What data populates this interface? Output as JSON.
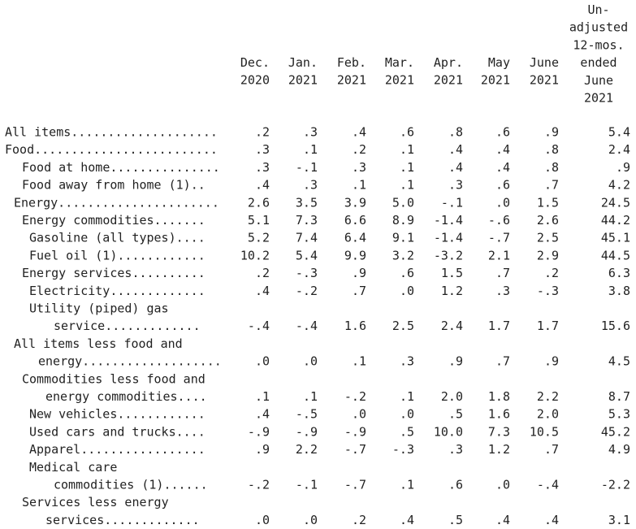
{
  "table": {
    "columns": [
      [
        "Dec.",
        "2020"
      ],
      [
        "Jan.",
        "2021"
      ],
      [
        "Feb.",
        "2021"
      ],
      [
        "Mar.",
        "2021"
      ],
      [
        "Apr.",
        "2021"
      ],
      [
        "May",
        "2021"
      ],
      [
        "June",
        "2021"
      ],
      [
        "Un-",
        "adjusted",
        "12-mos.",
        "ended",
        "June",
        "2021"
      ]
    ],
    "rows": [
      {
        "label": [
          "All items...................."
        ],
        "values": [
          ".2",
          ".3",
          ".4",
          ".6",
          ".8",
          ".6",
          ".9",
          "5.4"
        ]
      },
      {
        "label": [
          "Food........................."
        ],
        "values": [
          ".3",
          ".1",
          ".2",
          ".1",
          ".4",
          ".4",
          ".8",
          "2.4"
        ]
      },
      {
        "label": [
          "Food at home..............."
        ],
        "values": [
          ".3",
          "-.1",
          ".3",
          ".1",
          ".4",
          ".4",
          ".8",
          ".9"
        ]
      },
      {
        "label": [
          "Food away from home (1).."
        ],
        "values": [
          ".4",
          ".3",
          ".1",
          ".1",
          ".3",
          ".6",
          ".7",
          "4.2"
        ]
      },
      {
        "label": [
          "Energy......................"
        ],
        "values": [
          "2.6",
          "3.5",
          "3.9",
          "5.0",
          "-.1",
          ".0",
          "1.5",
          "24.5"
        ]
      },
      {
        "label": [
          "Energy commodities......."
        ],
        "values": [
          "5.1",
          "7.3",
          "6.6",
          "8.9",
          "-1.4",
          "-.6",
          "2.6",
          "44.2"
        ]
      },
      {
        "label": [
          "Gasoline (all types)...."
        ],
        "values": [
          "5.2",
          "7.4",
          "6.4",
          "9.1",
          "-1.4",
          "-.7",
          "2.5",
          "45.1"
        ]
      },
      {
        "label": [
          "Fuel oil (1)............"
        ],
        "values": [
          "10.2",
          "5.4",
          "9.9",
          "3.2",
          "-3.2",
          "2.1",
          "2.9",
          "44.5"
        ]
      },
      {
        "label": [
          "Energy services.........."
        ],
        "values": [
          ".2",
          "-.3",
          ".9",
          ".6",
          "1.5",
          ".7",
          ".2",
          "6.3"
        ]
      },
      {
        "label": [
          "Electricity............."
        ],
        "values": [
          ".4",
          "-.2",
          ".7",
          ".0",
          "1.2",
          ".3",
          "-.3",
          "3.8"
        ]
      },
      {
        "label": [
          "Utility (piped) gas",
          "service............."
        ],
        "values": [
          "-.4",
          "-.4",
          "1.6",
          "2.5",
          "2.4",
          "1.7",
          "1.7",
          "15.6"
        ]
      },
      {
        "label": [
          "All items less food and",
          "energy..................."
        ],
        "values": [
          ".0",
          ".0",
          ".1",
          ".3",
          ".9",
          ".7",
          ".9",
          "4.5"
        ]
      },
      {
        "label": [
          "Commodities less food and",
          "energy commodities...."
        ],
        "values": [
          ".1",
          ".1",
          "-.2",
          ".1",
          "2.0",
          "1.8",
          "2.2",
          "8.7"
        ]
      },
      {
        "label": [
          "New vehicles............"
        ],
        "values": [
          ".4",
          "-.5",
          ".0",
          ".0",
          ".5",
          "1.6",
          "2.0",
          "5.3"
        ]
      },
      {
        "label": [
          "Used cars and trucks...."
        ],
        "values": [
          "-.9",
          "-.9",
          "-.9",
          ".5",
          "10.0",
          "7.3",
          "10.5",
          "45.2"
        ]
      },
      {
        "label": [
          "Apparel................."
        ],
        "values": [
          ".9",
          "2.2",
          "-.7",
          "-.3",
          ".3",
          "1.2",
          ".7",
          "4.9"
        ]
      },
      {
        "label": [
          "Medical care",
          "commodities (1)......"
        ],
        "values": [
          "-.2",
          "-.1",
          "-.7",
          ".1",
          ".6",
          ".0",
          "-.4",
          "-2.2"
        ]
      },
      {
        "label": [
          "Services less energy",
          "services............."
        ],
        "values": [
          ".0",
          ".0",
          ".2",
          ".4",
          ".5",
          ".4",
          ".4",
          "3.1"
        ]
      }
    ]
  }
}
